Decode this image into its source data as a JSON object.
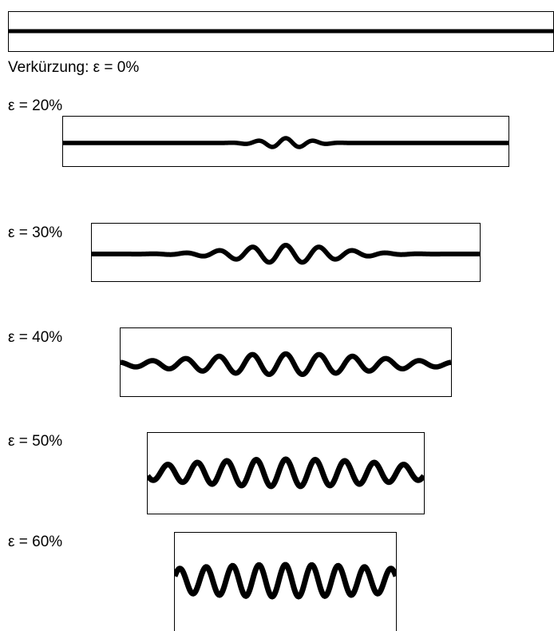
{
  "labels": {
    "stage0": "Verkürzung: ε = 0%",
    "stage1": "ε = 20%",
    "stage2": "ε = 30%",
    "stage3": "ε = 40%",
    "stage4": "ε = 50%",
    "stage5": "ε = 60%"
  },
  "layer_color": "#000000",
  "stages": [
    {
      "shortening_percent": 0
    },
    {
      "shortening_percent": 20
    },
    {
      "shortening_percent": 30
    },
    {
      "shortening_percent": 40
    },
    {
      "shortening_percent": 50
    },
    {
      "shortening_percent": 60
    }
  ]
}
